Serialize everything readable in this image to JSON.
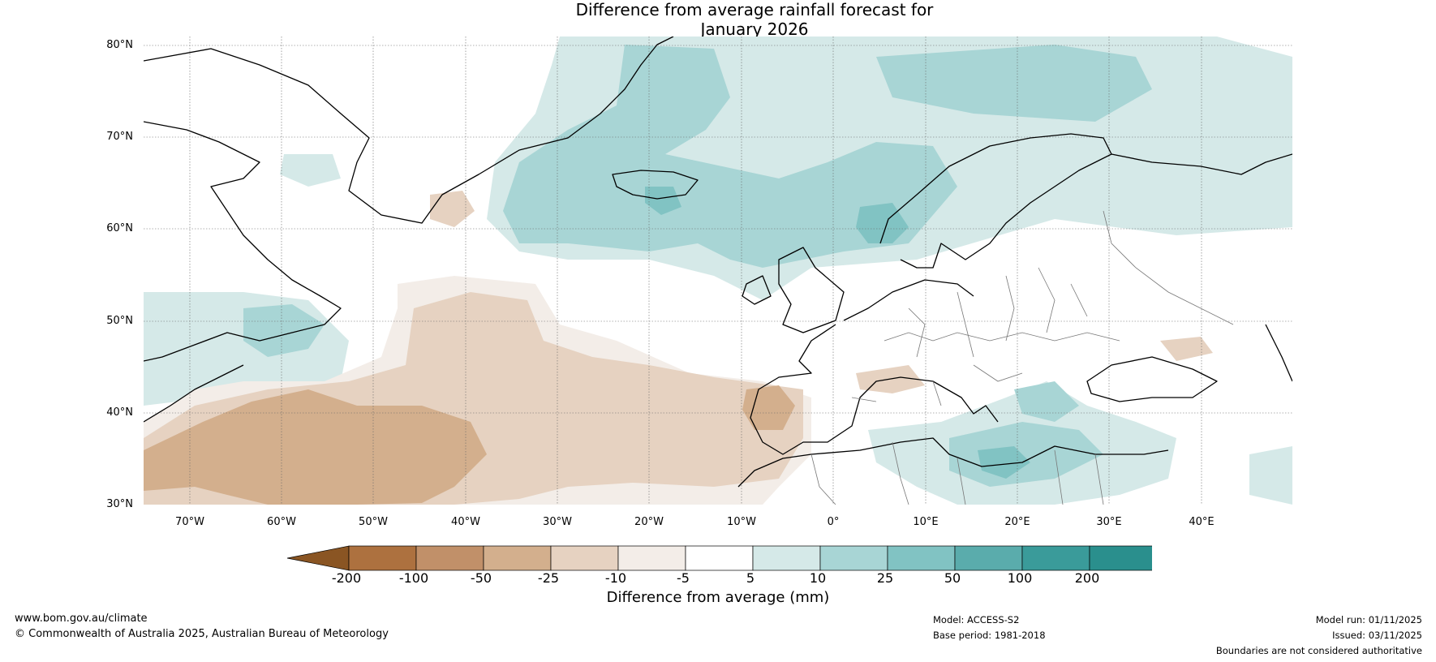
{
  "title": {
    "line1": "Difference from average rainfall forecast for",
    "line2": "January 2026"
  },
  "map": {
    "region": "North Atlantic and Europe",
    "lat_labels": [
      "80°N",
      "70°N",
      "60°N",
      "50°N",
      "40°N",
      "30°N"
    ],
    "lon_labels": [
      "70°W",
      "60°W",
      "50°W",
      "40°W",
      "30°W",
      "20°W",
      "10°W",
      "0°",
      "10°E",
      "20°E",
      "30°E",
      "40°E"
    ],
    "extent": {
      "lon_min": -75,
      "lon_max": 50,
      "lat_min": 30,
      "lat_max": 81
    }
  },
  "legend": {
    "title": "Difference from average (mm)",
    "ticks": [
      "-200",
      "-100",
      "-50",
      "-25",
      "-10",
      "-5",
      "5",
      "10",
      "25",
      "50",
      "100",
      "200"
    ],
    "colors": [
      "#8a5523",
      "#ad713f",
      "#c19069",
      "#d3af8d",
      "#e6d2c1",
      "#f3ede8",
      "#ffffff",
      "#d5e9e8",
      "#a8d5d5",
      "#81c3c3",
      "#5aacac",
      "#3a9b9a",
      "#2a8f8d",
      "#237b7a"
    ]
  },
  "footer": {
    "website": "www.bom.gov.au/climate",
    "copyright": "© Commonwealth of Australia 2025, Australian Bureau of Meteorology",
    "model": "Model: ACCESS-S2",
    "base_period": "Base period: 1981-2018",
    "model_run": "Model run: 01/11/2025",
    "issued": "Issued: 03/11/2025",
    "disclaimer": "Boundaries are not considered authoritative"
  }
}
